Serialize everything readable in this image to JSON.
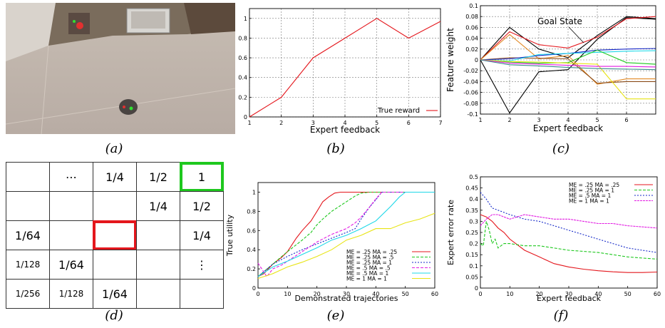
{
  "captions": {
    "a": "(a)",
    "b": "(b)",
    "c": "(c)",
    "d": "(d)",
    "e": "(e)",
    "f": "(f)"
  },
  "colors": {
    "red": "#e4161c",
    "green": "#1ec81e",
    "blue": "#1428c8",
    "magenta": "#e21be2",
    "cyan": "#1ed8e8",
    "yellow": "#e8e414",
    "black": "#000000",
    "orange": "#e28a26"
  },
  "grid": {
    "cells": [
      [
        "",
        "⋯",
        "1/4",
        "1/2",
        "1"
      ],
      [
        "",
        "",
        "",
        "1/4",
        "1/2"
      ],
      [
        "1/64",
        "",
        "",
        "",
        "1/4"
      ],
      [
        "1/128",
        "1/64",
        "",
        "",
        "⋮"
      ],
      [
        "1/256",
        "1/128",
        "1/64",
        "",
        ""
      ]
    ],
    "goal_cell": [
      0,
      4
    ],
    "start_cell": [
      2,
      2
    ]
  },
  "chart_data": [
    {
      "id": "b",
      "type": "line",
      "xlabel": "Expert feedback",
      "ylabel": "",
      "xlim": [
        1,
        7
      ],
      "ylim": [
        0,
        1.1
      ],
      "xticks": [
        "1",
        "2",
        "3",
        "4",
        "5",
        "6",
        "7"
      ],
      "yticks": [
        "0",
        "0.2",
        "0.4",
        "0.6",
        "0.8",
        "1"
      ],
      "grid": true,
      "legend_position": "bottom-right",
      "series": [
        {
          "name": "True reward",
          "color": "#e4161c",
          "x": [
            1,
            2,
            3,
            4,
            5,
            6,
            7
          ],
          "y": [
            0,
            0.2,
            0.6,
            0.8,
            1.0,
            0.8,
            0.97
          ]
        }
      ]
    },
    {
      "id": "c",
      "type": "line",
      "xlabel": "Expert feedback",
      "ylabel": "Feature weight",
      "xlim": [
        1,
        7
      ],
      "ylim": [
        -0.1,
        0.1
      ],
      "xticks": [
        "1",
        "2",
        "3",
        "4",
        "5",
        "6"
      ],
      "yticks": [
        "-0.1",
        "-0.08",
        "-0.06",
        "-0.04",
        "-0.02",
        "0",
        "0.02",
        "0.04",
        "0.06",
        "0.08",
        "0.1"
      ],
      "grid": true,
      "annotation": "Goal State",
      "series": [
        {
          "color": "#000000",
          "x": [
            1,
            2,
            3,
            4,
            5,
            6,
            7
          ],
          "y": [
            0,
            0.06,
            0.02,
            0.004,
            0.045,
            0.08,
            0.076
          ]
        },
        {
          "color": "#000000",
          "x": [
            1,
            2,
            3,
            4,
            5,
            6,
            7
          ],
          "y": [
            0,
            -0.098,
            -0.022,
            -0.018,
            0.038,
            0.078,
            0.075
          ]
        },
        {
          "color": "#e4161c",
          "x": [
            1,
            2,
            3,
            4,
            5,
            6,
            7
          ],
          "y": [
            0,
            0.052,
            0.028,
            0.022,
            0.042,
            0.076,
            0.08
          ]
        },
        {
          "color": "#e28a26",
          "x": [
            1,
            2,
            3,
            4,
            5,
            6,
            7
          ],
          "y": [
            0,
            0.047,
            0.002,
            0.008,
            -0.045,
            -0.035,
            -0.035
          ]
        },
        {
          "color": "#8a4a16",
          "x": [
            1,
            2,
            3,
            4,
            5,
            6,
            7
          ],
          "y": [
            0,
            0.004,
            0.003,
            0.002,
            -0.043,
            -0.04,
            -0.04
          ]
        },
        {
          "color": "#1428c8",
          "x": [
            1,
            2,
            3,
            4,
            5,
            6,
            7
          ],
          "y": [
            0,
            0.002,
            0.008,
            0.012,
            0.018,
            0.02,
            0.021
          ]
        },
        {
          "color": "#1ed8e8",
          "x": [
            1,
            2,
            3,
            4,
            5,
            6,
            7
          ],
          "y": [
            0,
            -0.002,
            0.01,
            0.012,
            0.014,
            0.016,
            0.017
          ]
        },
        {
          "color": "#1ec81e",
          "x": [
            1,
            2,
            3,
            4,
            5,
            6,
            7
          ],
          "y": [
            0,
            -0.004,
            -0.006,
            -0.005,
            0.018,
            -0.005,
            -0.008
          ]
        },
        {
          "color": "#e8e414",
          "x": [
            1,
            2,
            3,
            4,
            5,
            6,
            7
          ],
          "y": [
            0,
            -0.003,
            -0.004,
            -0.006,
            -0.008,
            -0.072,
            -0.072
          ]
        },
        {
          "color": "#e21be2",
          "x": [
            1,
            2,
            3,
            4,
            5,
            6,
            7
          ],
          "y": [
            0,
            -0.006,
            -0.008,
            -0.01,
            -0.012,
            -0.012,
            -0.013
          ]
        },
        {
          "color": "#3a8a8a",
          "x": [
            1,
            2,
            3,
            4,
            5,
            6,
            7
          ],
          "y": [
            0,
            -0.009,
            -0.011,
            -0.014,
            -0.016,
            -0.017,
            -0.018
          ]
        }
      ]
    },
    {
      "id": "e",
      "type": "line",
      "xlabel": "Demonstrated trajectories",
      "ylabel": "True utility",
      "xlim": [
        0,
        60
      ],
      "ylim": [
        0,
        1.1
      ],
      "xticks": [
        "0",
        "10",
        "20",
        "30",
        "40",
        "50",
        "60"
      ],
      "yticks": [
        "0",
        "0.2",
        "0.4",
        "0.6",
        "0.8",
        "1"
      ],
      "grid": false,
      "legend_position": "bottom-right",
      "series": [
        {
          "name": "ME = .25 MA = .25",
          "color": "#e4161c",
          "dash": "",
          "x": [
            0,
            2,
            5,
            8,
            10,
            13,
            15,
            18,
            20,
            22,
            24,
            26,
            28,
            30,
            35,
            40,
            50,
            60
          ],
          "y": [
            0.12,
            0.15,
            0.25,
            0.32,
            0.38,
            0.52,
            0.6,
            0.7,
            0.8,
            0.9,
            0.95,
            0.99,
            1,
            1,
            1,
            1,
            1,
            1
          ]
        },
        {
          "name": "ME = .25 MA = .5",
          "color": "#1ec81e",
          "dash": "4,2",
          "x": [
            0,
            5,
            10,
            15,
            18,
            20,
            22,
            25,
            28,
            30,
            33,
            35,
            38,
            40,
            50,
            60
          ],
          "y": [
            0.12,
            0.25,
            0.38,
            0.5,
            0.58,
            0.66,
            0.72,
            0.8,
            0.86,
            0.9,
            0.96,
            0.99,
            1,
            1,
            1,
            1
          ]
        },
        {
          "name": "ME = .25 MA = 1",
          "color": "#1428c8",
          "dash": "2,2",
          "x": [
            0,
            5,
            10,
            15,
            20,
            25,
            30,
            33,
            35,
            38,
            40,
            42,
            45,
            50,
            60
          ],
          "y": [
            0.12,
            0.25,
            0.33,
            0.4,
            0.46,
            0.52,
            0.58,
            0.62,
            0.72,
            0.85,
            0.92,
            1,
            1,
            1,
            1
          ]
        },
        {
          "name": "ME = .5 MA = .5",
          "color": "#e21be2",
          "dash": "4,2",
          "x": [
            0,
            3,
            5,
            8,
            10,
            15,
            20,
            25,
            30,
            33,
            35,
            38,
            40,
            42,
            45,
            50,
            60
          ],
          "y": [
            0.26,
            0.12,
            0.2,
            0.24,
            0.28,
            0.38,
            0.48,
            0.56,
            0.62,
            0.68,
            0.74,
            0.85,
            0.93,
            1,
            1,
            1,
            1
          ]
        },
        {
          "name": "ME = .5 MA = 1",
          "color": "#1ed8e8",
          "dash": "",
          "x": [
            0,
            5,
            10,
            15,
            20,
            25,
            30,
            35,
            40,
            45,
            48,
            50,
            55,
            60
          ],
          "y": [
            0.12,
            0.22,
            0.28,
            0.35,
            0.42,
            0.5,
            0.55,
            0.62,
            0.7,
            0.85,
            0.95,
            1,
            1,
            1
          ]
        },
        {
          "name": "ME = 1 MA = 1",
          "color": "#e8e414",
          "dash": "",
          "x": [
            0,
            5,
            10,
            15,
            20,
            25,
            30,
            35,
            40,
            45,
            50,
            55,
            60
          ],
          "y": [
            0.1,
            0.15,
            0.22,
            0.27,
            0.33,
            0.4,
            0.5,
            0.55,
            0.62,
            0.62,
            0.68,
            0.72,
            0.78
          ]
        }
      ]
    },
    {
      "id": "f",
      "type": "line",
      "xlabel": "Expert feedback",
      "ylabel": "Expert error rate",
      "xlim": [
        0,
        60
      ],
      "ylim": [
        0,
        0.5
      ],
      "xticks": [
        "0",
        "10",
        "20",
        "30",
        "40",
        "50",
        "60"
      ],
      "yticks": [
        "0",
        "0.05",
        "0.1",
        "0.15",
        "0.2",
        "0.25",
        "0.3",
        "0.35",
        "0.4",
        "0.45",
        "0.5"
      ],
      "grid": false,
      "legend_position": "top-right",
      "series": [
        {
          "name": "ME = .25  MA = .25",
          "color": "#e4161c",
          "dash": "",
          "x": [
            0,
            2,
            4,
            6,
            8,
            10,
            12,
            15,
            20,
            25,
            30,
            35,
            40,
            45,
            50,
            55,
            60
          ],
          "y": [
            0.33,
            0.32,
            0.3,
            0.27,
            0.25,
            0.22,
            0.2,
            0.17,
            0.14,
            0.11,
            0.095,
            0.085,
            0.078,
            0.073,
            0.07,
            0.07,
            0.072
          ]
        },
        {
          "name": "ME = .25  MA = 1",
          "color": "#1ec81e",
          "dash": "4,2",
          "x": [
            0,
            1,
            2,
            3,
            4,
            5,
            6,
            8,
            10,
            15,
            20,
            25,
            30,
            35,
            40,
            45,
            50,
            55,
            60
          ],
          "y": [
            0.2,
            0.19,
            0.3,
            0.26,
            0.2,
            0.22,
            0.18,
            0.2,
            0.2,
            0.19,
            0.19,
            0.18,
            0.17,
            0.165,
            0.16,
            0.15,
            0.14,
            0.135,
            0.13
          ]
        },
        {
          "name": "ME = .5  MA = 1",
          "color": "#1428c8",
          "dash": "2,2",
          "x": [
            0,
            2,
            4,
            6,
            8,
            10,
            15,
            20,
            25,
            30,
            35,
            40,
            45,
            50,
            55,
            60
          ],
          "y": [
            0.43,
            0.4,
            0.36,
            0.35,
            0.34,
            0.33,
            0.31,
            0.3,
            0.28,
            0.26,
            0.24,
            0.22,
            0.2,
            0.18,
            0.17,
            0.16
          ]
        },
        {
          "name": "ME = 1  MA = 1",
          "color": "#e21be2",
          "dash": "3,1",
          "x": [
            0,
            2,
            4,
            6,
            8,
            10,
            15,
            20,
            25,
            30,
            35,
            40,
            45,
            50,
            55,
            60
          ],
          "y": [
            0.28,
            0.31,
            0.33,
            0.33,
            0.32,
            0.31,
            0.33,
            0.32,
            0.31,
            0.31,
            0.3,
            0.29,
            0.29,
            0.28,
            0.275,
            0.27
          ]
        }
      ]
    }
  ]
}
